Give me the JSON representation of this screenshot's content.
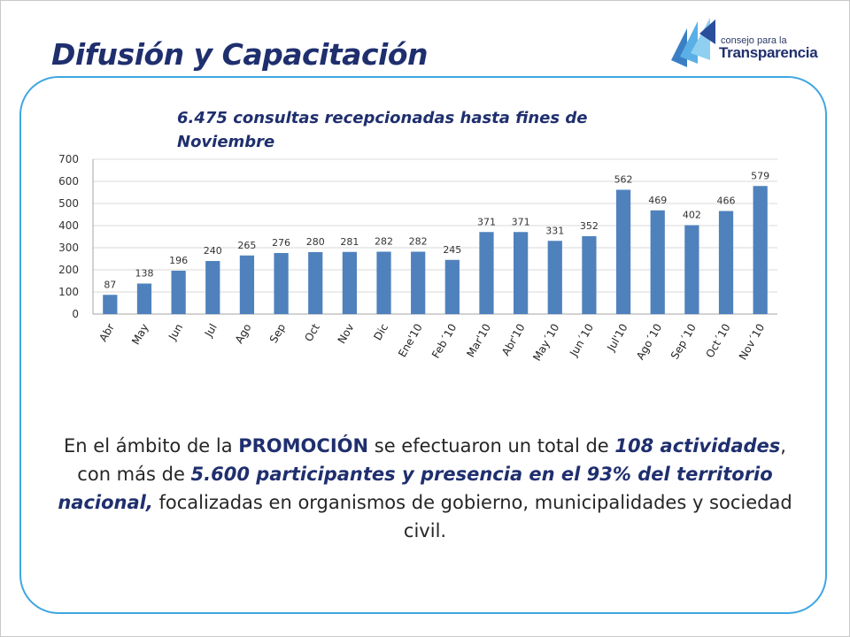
{
  "slide": {
    "title": "Difusión y Capacitación",
    "logo": {
      "small_text": "consejo para la",
      "big_text": "Transparencia"
    }
  },
  "colors": {
    "bar": "#4f81bd",
    "title": "#1f2f6e",
    "panel_border": "#3fa6e0"
  },
  "chart_data": {
    "type": "bar",
    "title": "6.475 consultas recepcionadas hasta fines de Noviembre",
    "xlabel": "",
    "ylabel": "",
    "categories": [
      "Abr",
      "May",
      "Jun",
      "Jul",
      "Ago",
      "Sep",
      "Oct",
      "Nov",
      "Dic",
      "Ene'10",
      "Feb´10",
      "Mar'10",
      "Abr'10",
      "May´10",
      "Jun´10",
      "Jul'10",
      "Ago´10",
      "Sep´10",
      "Oct´10",
      "Nov´10"
    ],
    "values": [
      87,
      138,
      196,
      240,
      265,
      276,
      280,
      281,
      282,
      282,
      245,
      371,
      371,
      331,
      352,
      562,
      469,
      402,
      466,
      579
    ],
    "ylim": [
      0,
      700
    ],
    "yticks": [
      "0",
      "100",
      "200",
      "300",
      "400",
      "500",
      "600",
      "700"
    ],
    "grid": true,
    "legend": "none"
  },
  "body_text": {
    "p1": "En el ámbito de la ",
    "p2": "PROMOCIÓN",
    "p3": " se efectuaron un total de ",
    "p4": "108 actividades",
    "p5": ", con más de ",
    "p6": "5.600 participantes y presencia en el 93% del territorio nacional,",
    "p7": " focalizadas en organismos de gobierno, municipalidades y sociedad civil."
  }
}
